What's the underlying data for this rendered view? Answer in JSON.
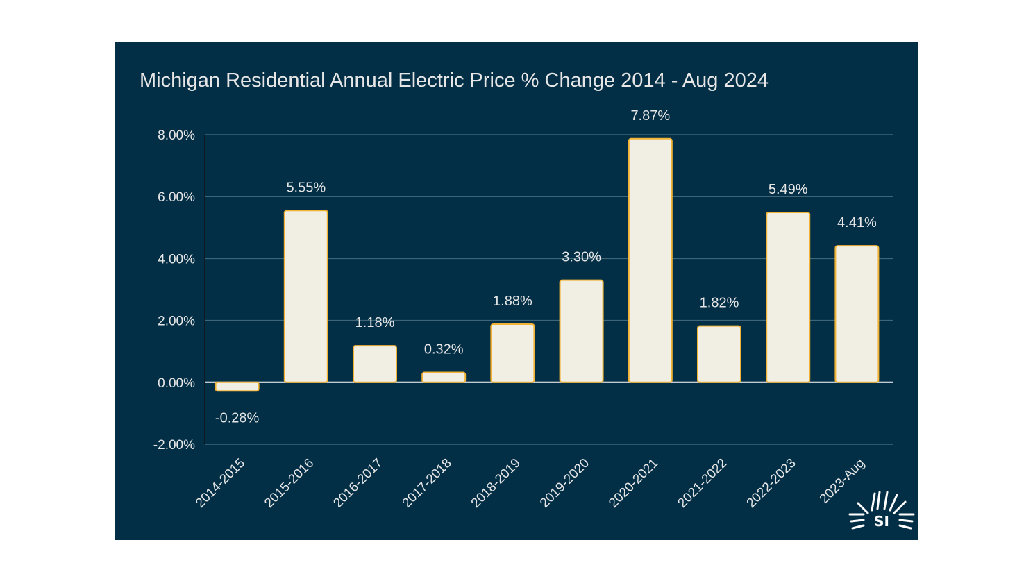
{
  "chart_data": {
    "type": "bar",
    "title": "Michigan Residential Annual Electric Price % Change 2014 - Aug 2024",
    "xlabel": "",
    "ylabel": "",
    "categories": [
      "2014-2015",
      "2015-2016",
      "2016-2017",
      "2017-2018",
      "2018-2019",
      "2019-2020",
      "2020-2021",
      "2021-2022",
      "2022-2023",
      "2023-Aug"
    ],
    "values": [
      -0.28,
      5.55,
      1.18,
      0.32,
      1.88,
      3.3,
      7.87,
      1.82,
      5.49,
      4.41
    ],
    "data_labels": [
      "-0.28%",
      "5.55%",
      "1.18%",
      "0.32%",
      "1.88%",
      "3.30%",
      "7.87%",
      "1.82%",
      "5.49%",
      "4.41%"
    ],
    "ylim": [
      -2,
      8
    ],
    "yticks": [
      -2,
      0,
      2,
      4,
      6,
      8
    ],
    "ytick_labels": [
      "-2.00%",
      "0.00%",
      "2.00%",
      "4.00%",
      "6.00%",
      "8.00%"
    ],
    "grid": true,
    "legend": "none"
  },
  "colors": {
    "background": "#032f46",
    "bar_fill": "#f1efe3",
    "bar_stroke": "#f2b234",
    "grid": "#3f6678",
    "zero_line": "#ffffff",
    "text": "#e6e6e6"
  },
  "logo": {
    "icon": "sun-rays-logo-icon",
    "text": "SI"
  }
}
